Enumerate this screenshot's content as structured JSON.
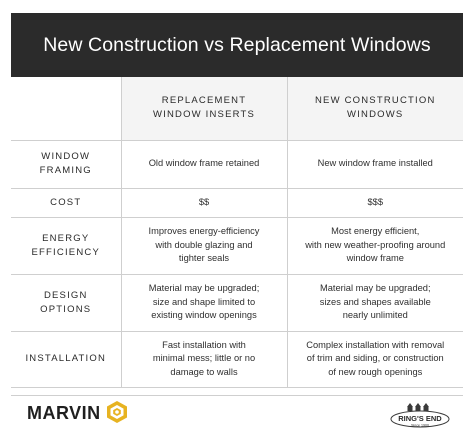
{
  "title": "New Construction vs Replacement Windows",
  "columns": [
    {
      "line1": "REPLACEMENT",
      "line2": "WINDOW INSERTS"
    },
    {
      "line1": "NEW CONSTRUCTION",
      "line2": "WINDOWS"
    }
  ],
  "rows": [
    {
      "label": [
        "WINDOW",
        "FRAMING"
      ],
      "replacement": [
        "Old window frame retained"
      ],
      "new_construction": [
        "New window frame installed"
      ]
    },
    {
      "label": [
        "COST"
      ],
      "replacement": [
        "$$"
      ],
      "new_construction": [
        "$$$"
      ]
    },
    {
      "label": [
        "ENERGY",
        "EFFICIENCY"
      ],
      "replacement": [
        "Improves energy-efficiency",
        "with double glazing and",
        "tighter seals"
      ],
      "new_construction": [
        "Most energy efficient,",
        "with new weather-proofing around",
        "window frame"
      ]
    },
    {
      "label": [
        "DESIGN",
        "OPTIONS"
      ],
      "replacement": [
        "Material may be upgraded;",
        "size and shape limited to",
        "existing window openings"
      ],
      "new_construction": [
        "Material may be upgraded;",
        "sizes and shapes available",
        "nearly unlimited"
      ]
    },
    {
      "label": [
        "INSTALLATION"
      ],
      "replacement": [
        "Fast installation with",
        "minimal mess; little or no",
        "damage to walls"
      ],
      "new_construction": [
        "Complex installation with removal",
        "of trim and siding, or construction",
        "of new rough openings"
      ]
    }
  ],
  "footer": {
    "brand_left": "MARVIN",
    "brand_right": "RING'S END",
    "brand_right_tagline": "Since 1900"
  },
  "colors": {
    "title_bg": "#2b2b2b",
    "header_bg": "#f4f4f4",
    "border": "#cfcfcf",
    "marvin_gold": "#e7b321"
  }
}
